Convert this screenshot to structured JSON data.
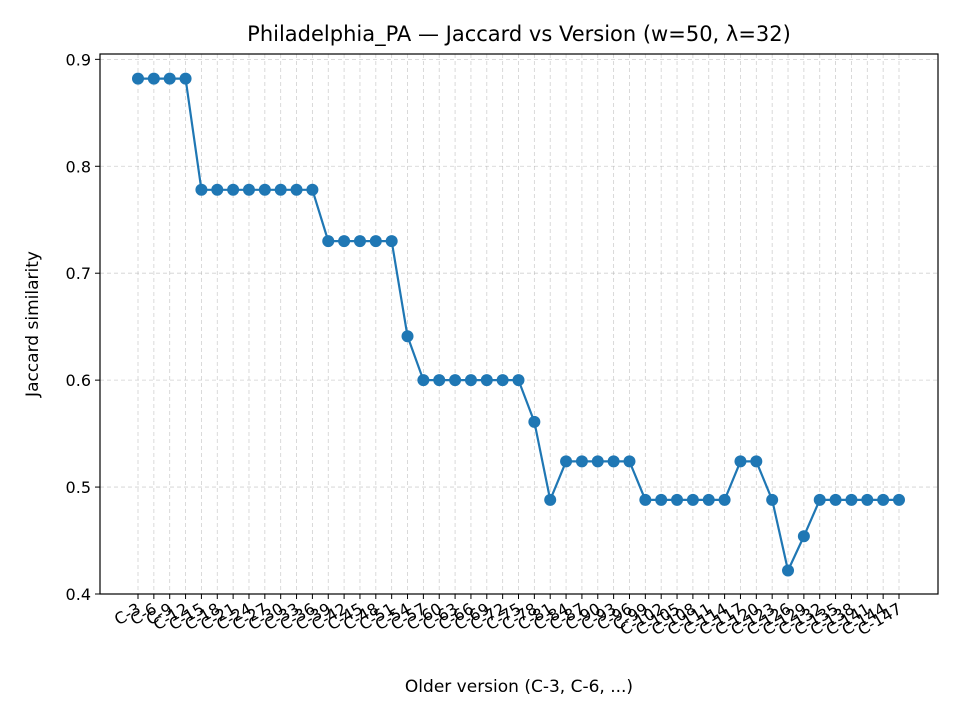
{
  "chart_data": {
    "type": "line",
    "title": "Philadelphia_PA — Jaccard vs Version (w=50, λ=32)",
    "xlabel": "Older version (C-3, C-6, ...)",
    "ylabel": "Jaccard similarity",
    "ylim": [
      0.4,
      0.905
    ],
    "yticks": [
      "0.4",
      "0.5",
      "0.6",
      "0.7",
      "0.8",
      "0.9"
    ],
    "grid": true,
    "categories": [
      "C-3",
      "C-6",
      "C-9",
      "C-12",
      "C-15",
      "C-18",
      "C-21",
      "C-24",
      "C-27",
      "C-30",
      "C-33",
      "C-36",
      "C-39",
      "C-42",
      "C-45",
      "C-48",
      "C-51",
      "C-54",
      "C-57",
      "C-60",
      "C-63",
      "C-66",
      "C-69",
      "C-72",
      "C-75",
      "C-78",
      "C-81",
      "C-84",
      "C-87",
      "C-90",
      "C-93",
      "C-96",
      "C-99",
      "C-102",
      "C-105",
      "C-108",
      "C-111",
      "C-114",
      "C-117",
      "C-120",
      "C-123",
      "C-126",
      "C-129",
      "C-132",
      "C-135",
      "C-138",
      "C-141",
      "C-144",
      "C-147"
    ],
    "series": [
      {
        "color": "#1f77b4",
        "values": [
          0.882,
          0.882,
          0.882,
          0.882,
          0.778,
          0.778,
          0.778,
          0.778,
          0.778,
          0.778,
          0.778,
          0.778,
          0.73,
          0.73,
          0.73,
          0.73,
          0.73,
          0.641,
          0.6,
          0.6,
          0.6,
          0.6,
          0.6,
          0.6,
          0.6,
          0.561,
          0.488,
          0.524,
          0.524,
          0.524,
          0.524,
          0.524,
          0.488,
          0.488,
          0.488,
          0.488,
          0.488,
          0.488,
          0.524,
          0.524,
          0.488,
          0.422,
          0.454,
          0.488,
          0.488,
          0.488,
          0.488,
          0.488,
          0.488
        ]
      }
    ]
  }
}
